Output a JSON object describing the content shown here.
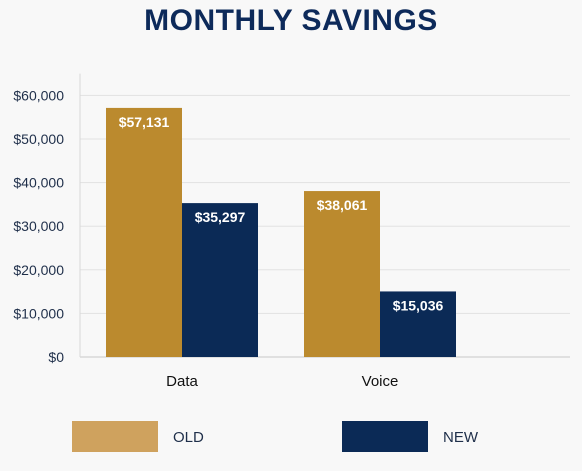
{
  "chart_data": {
    "type": "bar",
    "title": "MONTHLY SAVINGS",
    "categories": [
      "Data",
      "Voice"
    ],
    "series": [
      {
        "name": "OLD",
        "values": [
          57131,
          38061
        ],
        "labels": [
          "$57,131",
          "$38,061"
        ],
        "color": "#bb8a2e"
      },
      {
        "name": "NEW",
        "values": [
          35297,
          15036
        ],
        "labels": [
          "$35,297",
          "$15,036"
        ],
        "color": "#0b2a56"
      }
    ],
    "yticks": [
      {
        "value": 0,
        "label": "$0"
      },
      {
        "value": 10000,
        "label": "$10,000"
      },
      {
        "value": 20000,
        "label": "$20,000"
      },
      {
        "value": 30000,
        "label": "$30,000"
      },
      {
        "value": 40000,
        "label": "$40,000"
      },
      {
        "value": 50000,
        "label": "$50,000"
      },
      {
        "value": 60000,
        "label": "$60,000"
      }
    ],
    "ylim": [
      0,
      65000
    ],
    "grid": true,
    "legend": {
      "position": "bottom",
      "items": [
        {
          "label": "OLD",
          "color": "#cfa25e"
        },
        {
          "label": "NEW",
          "color": "#0b2a56"
        }
      ]
    },
    "xlabel": "",
    "ylabel": ""
  }
}
